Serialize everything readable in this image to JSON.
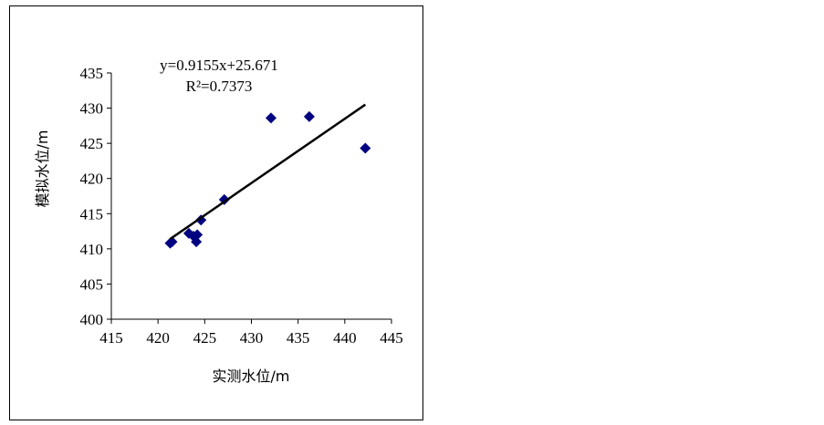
{
  "chart_data": {
    "type": "scatter",
    "x_label": "实测水位/m",
    "y_label": "模拟水位/m",
    "equation": "y=0.9155x+25.671",
    "r_squared": "R²=0.7373",
    "series": [
      {
        "color": "#000080",
        "x": [
          421.3,
          421.5,
          423.3,
          423.8,
          424.2,
          424.1,
          424.6,
          427.1,
          432.1,
          436.2,
          442.2
        ],
        "values": [
          410.8,
          411.0,
          412.2,
          411.8,
          412.0,
          411.0,
          414.1,
          417.0,
          428.6,
          428.8,
          424.3
        ]
      }
    ],
    "trendline": {
      "color": "#000000",
      "x": [
        421.3,
        442.2
      ],
      "y": [
        411.4,
        430.5
      ]
    },
    "xlim": [
      415,
      445
    ],
    "xticks": [
      415,
      420,
      425,
      430,
      435,
      440,
      445
    ],
    "ylim": [
      400,
      435
    ],
    "yticks": [
      400,
      405,
      410,
      415,
      420,
      425,
      430,
      435
    ],
    "grid": false
  }
}
